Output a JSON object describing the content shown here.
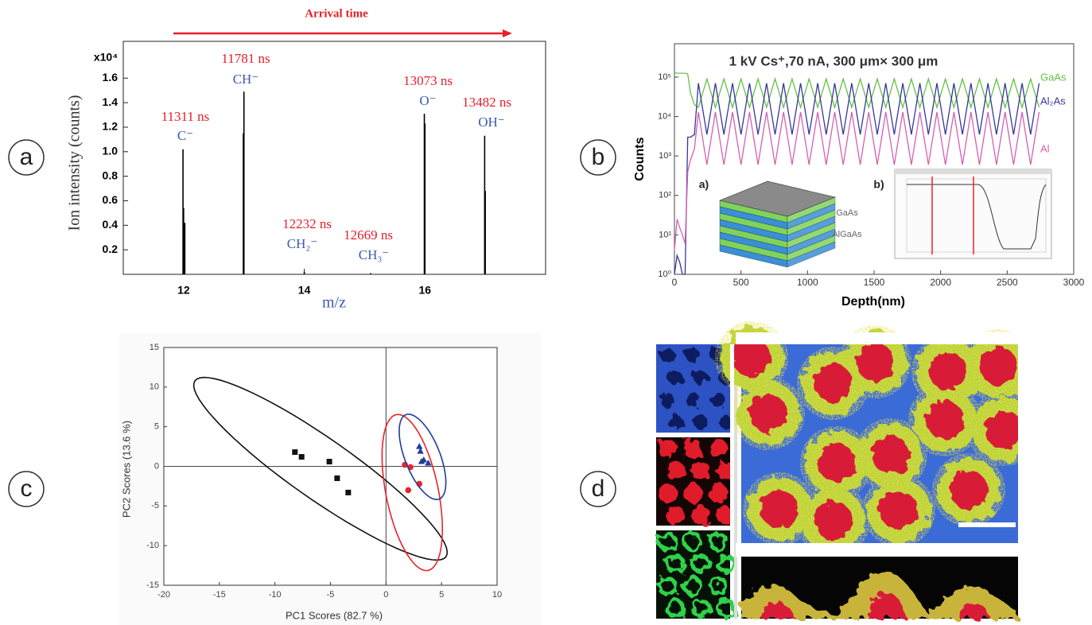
{
  "chart_data": [
    {
      "type": "stem",
      "panel_label": "a",
      "title": "Arrival time",
      "x_label": "m/z",
      "y_label": "Ion intensity (counts)",
      "y_multiplier": "x10⁴",
      "color": "#000000",
      "x": [
        11.99,
        12.0,
        12.02,
        12.99,
        13.0,
        14.0,
        15.1,
        15.99,
        16.0,
        16.99,
        17.0
      ],
      "values": [
        1.02,
        0.54,
        0.42,
        1.15,
        1.49,
        0.02,
        0.01,
        1.31,
        1.23,
        1.13,
        0.68
      ],
      "xlim": [
        11,
        18
      ],
      "xticks": [
        12,
        14,
        16
      ],
      "ylim": [
        0,
        1.9
      ],
      "yticks": [
        0.2,
        0.4,
        0.6,
        0.8,
        {
          "value": 1.0,
          "label": "1.0"
        },
        1.2,
        1.4,
        1.6
      ],
      "annotations": [
        {
          "time": "11311 ns",
          "ion": "C⁻"
        },
        {
          "time": "11781 ns",
          "ion": "CH⁻"
        },
        {
          "time": "12232 ns",
          "ion": "CH₂⁻"
        },
        {
          "time": "12669 ns",
          "ion": "CH₃⁻"
        },
        {
          "time": "13073 ns",
          "ion": "O⁻"
        },
        {
          "time": "13482 ns",
          "ion": "OH⁻"
        }
      ]
    },
    {
      "type": "line",
      "panel_label": "b",
      "title": "1 kV Cs⁺,70 nA, 300 μm× 300 μm",
      "x_label": "Depth(nm)",
      "y_label": "Counts",
      "log_y": true,
      "inset_labels": [
        "a)",
        "b)",
        "GaAs",
        "AlGaAs"
      ],
      "x": [
        0,
        20,
        40,
        60,
        80,
        100,
        120,
        150,
        180,
        244,
        308,
        372,
        436,
        500,
        564,
        628,
        692,
        756,
        820,
        884,
        948,
        1012,
        1076,
        1140,
        1204,
        1268,
        1332,
        1396,
        1460,
        1524,
        1588,
        1652,
        1716,
        1780,
        1844,
        1908,
        1972,
        2036,
        2100,
        2164,
        2228,
        2292,
        2356,
        2420,
        2484,
        2548,
        2612,
        2676,
        2740
      ],
      "series": [
        {
          "name": "GaAs",
          "color": "#66bf45",
          "values": [
            130000,
            125000,
            125000,
            125000,
            125000,
            120000,
            40000,
            20000,
            17000,
            90000,
            17000,
            90000,
            17000,
            90000,
            17000,
            90000,
            17000,
            90000,
            17000,
            90000,
            17000,
            90000,
            17000,
            90000,
            17000,
            90000,
            17000,
            90000,
            17000,
            90000,
            17000,
            90000,
            17000,
            90000,
            17000,
            90000,
            17000,
            90000,
            17000,
            90000,
            17000,
            90000,
            17000,
            90000,
            17000,
            90000,
            17000,
            90000,
            17000
          ]
        },
        {
          "name": "Al₂As",
          "color": "#34379a",
          "values": [
            1,
            3,
            2,
            1,
            1,
            3000,
            3000,
            3500,
            70000,
            3500,
            70000,
            3500,
            70000,
            3500,
            70000,
            3500,
            70000,
            3500,
            70000,
            3500,
            70000,
            3500,
            70000,
            3500,
            70000,
            3500,
            70000,
            3500,
            70000,
            3500,
            70000,
            3500,
            70000,
            3500,
            70000,
            3500,
            70000,
            3500,
            70000,
            3500,
            70000,
            3500,
            70000,
            3500,
            70000,
            3500,
            70000,
            3500,
            70000
          ]
        },
        {
          "name": "Al",
          "color": "#d45fb4",
          "values": [
            4,
            25,
            15,
            10,
            6,
            400,
            800,
            1500,
            13000,
            600,
            13000,
            600,
            13000,
            600,
            13000,
            600,
            13000,
            600,
            13000,
            600,
            13000,
            600,
            13000,
            600,
            13000,
            600,
            13000,
            600,
            13000,
            600,
            13000,
            600,
            13000,
            600,
            13000,
            600,
            13000,
            600,
            13000,
            600,
            13000,
            600,
            13000,
            600,
            13000,
            600,
            13000,
            600,
            13000
          ]
        }
      ],
      "xlim": [
        0,
        3000
      ],
      "xticks": [
        0,
        500,
        1000,
        1500,
        2000,
        2500,
        3000
      ],
      "ylim": [
        1,
        700000
      ],
      "yticks": [
        {
          "value": 1,
          "label": "10⁰"
        },
        {
          "value": 10,
          "label": "10¹"
        },
        {
          "value": 100,
          "label": "10²"
        },
        {
          "value": 1000,
          "label": "10³"
        },
        {
          "value": 10000,
          "label": "10⁴"
        },
        {
          "value": 100000,
          "label": "10⁵"
        }
      ]
    },
    {
      "type": "scatter",
      "panel_label": "c",
      "x_label": "PC1 Scores (82.7 %)",
      "y_label": "PC2 Scores (13.6 %)",
      "xlim": [
        -20,
        10
      ],
      "xticks": [
        -20,
        -15,
        -10,
        -5,
        0,
        5,
        10
      ],
      "ylim": [
        -15,
        15
      ],
      "yticks": [
        -15,
        -10,
        -5,
        0,
        5,
        10,
        15
      ],
      "series": [
        {
          "color": "#111111",
          "marker": "square",
          "x": [
            -8.2,
            -7.6,
            -5.1,
            -4.4,
            -3.4
          ],
          "values": [
            1.8,
            1.2,
            0.6,
            -1.5,
            -3.3
          ],
          "ellipse": {
            "center_x": -5.9,
            "center_y": -0.3,
            "axis1": [
              11.3,
              -11.1
            ],
            "axis2": [
              -1.6,
              -3.1
            ]
          }
        },
        {
          "color": "#e8242a",
          "marker": "circle",
          "x": [
            1.7,
            2.2,
            2.0,
            3.0
          ],
          "values": [
            0.2,
            -0.1,
            -3.0,
            -2.2
          ],
          "ellipse": {
            "center_x": 2.36,
            "center_y": -3.3,
            "axis1": [
              -1.43,
              9.83
            ],
            "axis2": [
              2.31,
              0.66
            ]
          }
        },
        {
          "color": "#1f3c99",
          "marker": "triangle",
          "x": [
            3.0,
            3.1,
            3.4,
            3.8,
            3.2
          ],
          "values": [
            2.5,
            1.9,
            0.8,
            0.4,
            0.6
          ],
          "ellipse": {
            "center_x": 3.29,
            "center_y": 1.2,
            "axis1": [
              -1.5,
              5.32
            ],
            "axis2": [
              1.47,
              0.81
            ]
          }
        }
      ]
    }
  ],
  "image_panel": {
    "panel_label": "d"
  }
}
